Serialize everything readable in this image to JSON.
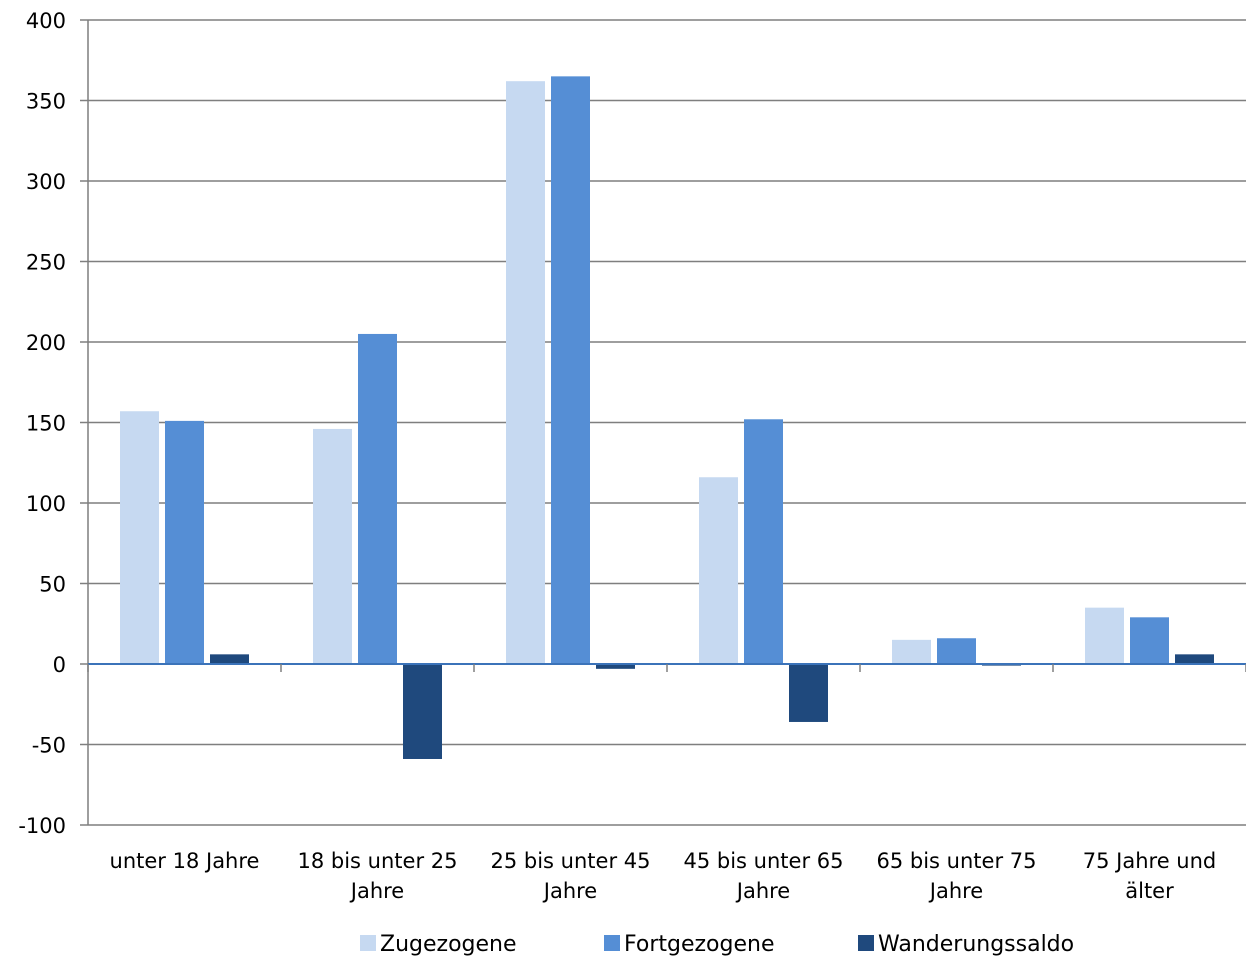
{
  "chart_data": {
    "type": "bar",
    "title": "",
    "xlabel": "",
    "ylabel": "",
    "categories": [
      [
        "unter 18 Jahre"
      ],
      [
        "18 bis unter 25",
        "Jahre"
      ],
      [
        "25 bis unter 45",
        "Jahre"
      ],
      [
        "45 bis unter 65",
        "Jahre"
      ],
      [
        "65 bis unter 75",
        "Jahre"
      ],
      [
        "75 Jahre und",
        "älter"
      ]
    ],
    "series": [
      {
        "name": "Zugezogene",
        "color": "#c6d9f1",
        "values": [
          157,
          146,
          362,
          116,
          15,
          35
        ]
      },
      {
        "name": "Fortgezogene",
        "color": "#558ed5",
        "values": [
          151,
          205,
          365,
          152,
          16,
          29
        ]
      },
      {
        "name": "Wanderungssaldo",
        "color": "#1f497d",
        "values": [
          6,
          -59,
          -3,
          -36,
          -1,
          6
        ]
      }
    ],
    "ylim": [
      -100,
      400
    ],
    "yticks": [
      400,
      350,
      300,
      250,
      200,
      150,
      100,
      50,
      0,
      -50,
      -100
    ],
    "grid": true,
    "legend_position": "bottom",
    "colors": {
      "grid": "#7f7f7f",
      "zero_line": "#3b73b9"
    }
  }
}
